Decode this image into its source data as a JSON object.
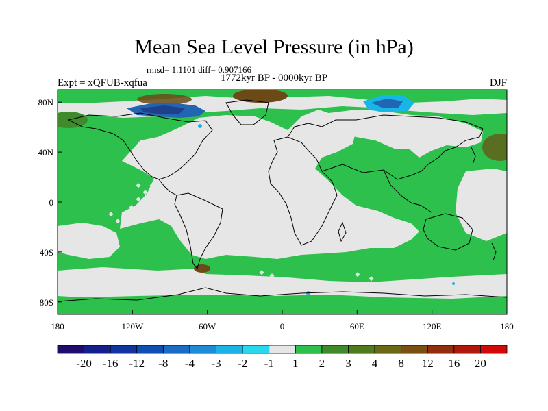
{
  "title": "Mean Sea Level Pressure (in hPa)",
  "stats": "rmsd= 1.1101 diff= 0.907166",
  "subtitle": "1772kyr BP - 0000kyr BP",
  "experiment": "Expt = xQFUB-xqfua",
  "season": "DJF",
  "colors": {
    "land": "#e6e6e6",
    "light_green": "#2ec04d",
    "dark_green": "#3f8a2a",
    "olive": "#5a6e22",
    "brown": "#6b4a17",
    "blue_dark": "#1e3f8a",
    "blue_mid": "#2166b3",
    "cyan": "#18b6e6"
  },
  "map": {
    "lon_range": [
      -180,
      180
    ],
    "lat_range": [
      -90,
      90
    ],
    "lon_ticks": [
      {
        "value": -180,
        "label": "180"
      },
      {
        "value": -120,
        "label": "120W"
      },
      {
        "value": -60,
        "label": "60W"
      },
      {
        "value": 0,
        "label": "0"
      },
      {
        "value": 60,
        "label": "60E"
      },
      {
        "value": 120,
        "label": "120E"
      },
      {
        "value": 180,
        "label": "180"
      }
    ],
    "lat_ticks": [
      {
        "value": 80,
        "label": "80N"
      },
      {
        "value": 40,
        "label": "40N"
      },
      {
        "value": 0,
        "label": "0"
      },
      {
        "value": -40,
        "label": "40S"
      },
      {
        "value": -80,
        "label": "80S"
      }
    ]
  },
  "colorbar": {
    "colors": [
      "#1f0a6e",
      "#141e8c",
      "#1234a0",
      "#0f4fb4",
      "#1a6cc8",
      "#1c8cd6",
      "#1cb4e6",
      "#2ad8ee",
      "#e6e6e6",
      "#2ec04d",
      "#3f8a2a",
      "#4f7a1e",
      "#6a6a16",
      "#7a5012",
      "#902e0e",
      "#b0180c",
      "#d00a08"
    ],
    "labels": [
      "-20",
      "-16",
      "-12",
      "-8",
      "-4",
      "-3",
      "-2",
      "-1",
      "1",
      "2",
      "3",
      "4",
      "8",
      "12",
      "16",
      "20"
    ]
  }
}
